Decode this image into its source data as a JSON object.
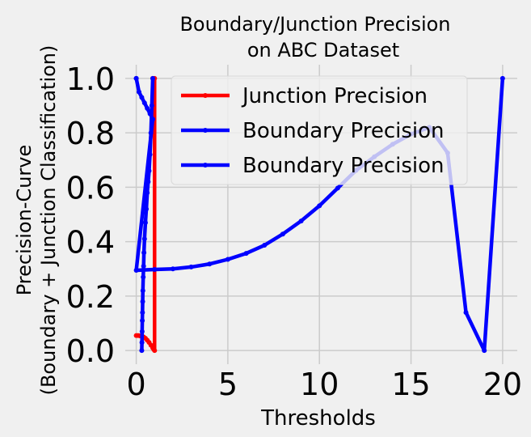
{
  "chart_data": {
    "type": "line",
    "title_lines": [
      "Boundary/Junction Precision",
      "on ABC Dataset"
    ],
    "xlabel": "Thresholds",
    "ylabel_lines": [
      "Precision-Curve",
      "(Boundary + Junction Classification)"
    ],
    "xlim": [
      -0.6,
      20.8
    ],
    "ylim": [
      -0.05,
      1.05
    ],
    "xticks": [
      0,
      5,
      10,
      15,
      20
    ],
    "yticks": [
      0.0,
      0.2,
      0.4,
      0.6,
      0.8,
      1.0
    ],
    "xtick_labels": [
      "0",
      "5",
      "10",
      "15",
      "20"
    ],
    "ytick_labels": [
      "0.0",
      "0.2",
      "0.4",
      "0.6",
      "0.8",
      "1.0"
    ],
    "grid": true,
    "legend_position": "upper-center",
    "series": [
      {
        "name": "Junction Precision",
        "color": "#ff0000",
        "x": [
          0.0,
          0.1,
          0.2,
          0.3,
          0.4,
          0.5,
          0.6,
          0.7,
          0.8,
          0.9,
          0.95,
          1.0,
          1.0,
          0.9
        ],
        "y": [
          0.055,
          0.055,
          0.054,
          0.053,
          0.05,
          0.045,
          0.038,
          0.03,
          0.02,
          0.01,
          0.005,
          0.0,
          1.0,
          1.0
        ]
      },
      {
        "name": "Boundary Precision",
        "color": "#0000ff",
        "x": [
          0.9,
          0.85,
          0.8,
          0.75,
          0.7,
          0.65,
          0.6,
          0.55,
          0.5,
          0.45,
          0.42,
          0.4,
          0.38,
          0.36,
          0.35,
          0.34,
          0.33,
          0.32,
          0.31,
          0.3
        ],
        "y": [
          1.0,
          0.9,
          0.8,
          0.72,
          0.66,
          0.62,
          0.58,
          0.52,
          0.47,
          0.41,
          0.36,
          0.31,
          0.27,
          0.22,
          0.18,
          0.14,
          0.11,
          0.07,
          0.03,
          0.0
        ]
      },
      {
        "name": "Boundary Precision",
        "color": "#0000ff",
        "x": [
          0.0,
          0.0,
          0.15,
          0.3,
          0.45,
          0.6,
          0.75,
          0.9,
          0.0,
          1.0,
          2.0,
          3.0,
          4.0,
          5.0,
          6.0,
          7.0,
          8.0,
          9.0,
          10.0,
          11.0,
          12.0,
          13.0,
          14.0,
          15.0,
          16.0,
          17.0,
          18.0,
          19.0,
          20.0
        ],
        "y": [
          1.0,
          1.0,
          0.95,
          0.93,
          0.91,
          0.89,
          0.87,
          0.85,
          0.295,
          0.298,
          0.3,
          0.307,
          0.318,
          0.335,
          0.357,
          0.387,
          0.428,
          0.476,
          0.532,
          0.597,
          0.662,
          0.712,
          0.758,
          0.795,
          0.82,
          0.726,
          0.14,
          0.0,
          1.0
        ]
      }
    ]
  }
}
